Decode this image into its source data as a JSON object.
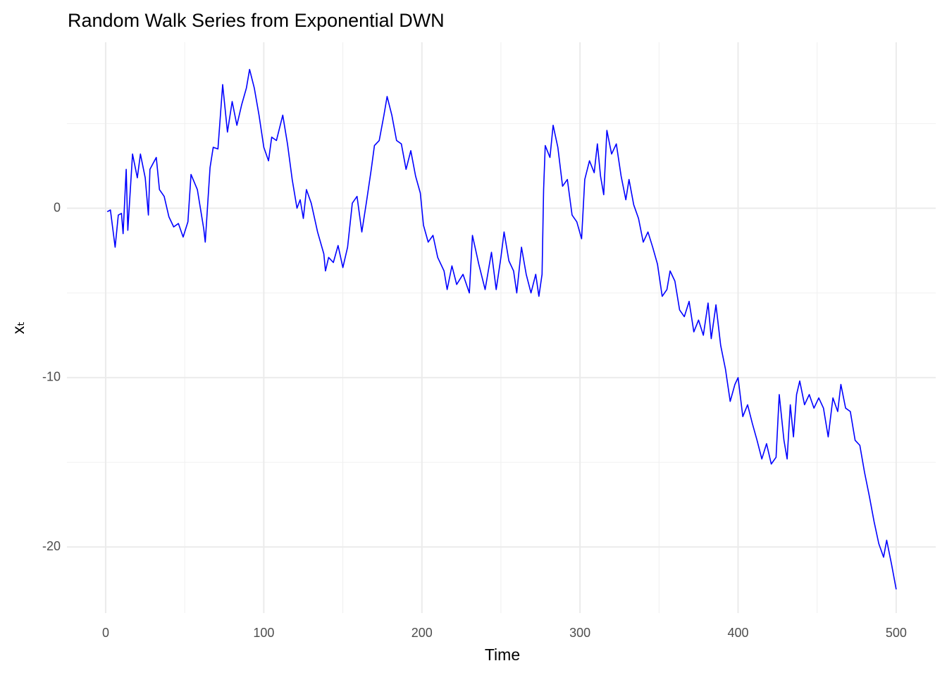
{
  "chart_data": {
    "type": "line",
    "title": "Random Walk Series from Exponential DWN",
    "xlabel": "Time",
    "ylabel": "xₜ",
    "x": [
      1,
      3,
      6,
      8,
      10,
      11,
      13,
      14,
      17,
      20,
      22,
      25,
      27,
      28,
      32,
      34,
      37,
      40,
      43,
      46,
      49,
      52,
      54,
      58,
      62,
      63,
      66,
      68,
      71,
      74,
      77,
      80,
      83,
      86,
      89,
      91,
      94,
      97,
      100,
      103,
      105,
      108,
      112,
      115,
      118,
      121,
      123,
      125,
      127,
      130,
      134,
      138,
      139,
      141,
      144,
      147,
      150,
      153,
      156,
      159,
      162,
      165,
      168,
      170,
      173,
      176,
      178,
      181,
      184,
      187,
      190,
      193,
      196,
      199,
      201,
      204,
      207,
      210,
      214,
      216,
      219,
      222,
      226,
      230,
      232,
      236,
      240,
      244,
      247,
      250,
      252,
      255,
      258,
      260,
      263,
      266,
      269,
      272,
      274,
      276,
      277,
      278,
      281,
      283,
      286,
      289,
      292,
      295,
      298,
      301,
      303,
      306,
      309,
      311,
      313,
      315,
      317,
      320,
      323,
      326,
      329,
      331,
      334,
      337,
      340,
      343,
      346,
      349,
      352,
      355,
      357,
      360,
      363,
      366,
      369,
      372,
      375,
      378,
      381,
      383,
      386,
      389,
      392,
      395,
      398,
      400,
      403,
      406,
      409,
      412,
      415,
      418,
      421,
      424,
      426,
      429,
      431,
      433,
      435,
      437,
      439,
      442,
      445,
      448,
      451,
      454,
      457,
      460,
      463,
      465,
      468,
      471,
      474,
      477,
      480,
      483,
      486,
      489,
      492,
      494,
      497,
      500
    ],
    "values": [
      -0.2,
      -0.1,
      -2.3,
      -0.4,
      -0.3,
      -1.5,
      2.3,
      -1.3,
      3.2,
      1.8,
      3.2,
      1.8,
      -0.4,
      2.3,
      3.0,
      1.1,
      0.7,
      -0.5,
      -1.1,
      -0.9,
      -1.7,
      -0.8,
      2.0,
      1.1,
      -1.2,
      -2.0,
      2.4,
      3.6,
      3.5,
      7.3,
      4.5,
      6.3,
      4.9,
      6.1,
      7.1,
      8.2,
      7.1,
      5.5,
      3.6,
      2.8,
      4.2,
      4.0,
      5.5,
      3.8,
      1.7,
      0,
      0.5,
      -0.6,
      1.1,
      0.3,
      -1.4,
      -2.7,
      -3.7,
      -2.9,
      -3.2,
      -2.2,
      -3.5,
      -2.3,
      0.3,
      0.7,
      -1.4,
      0.4,
      2.3,
      3.7,
      4.0,
      5.5,
      6.6,
      5.5,
      4.0,
      3.8,
      2.3,
      3.4,
      1.9,
      0.9,
      -1.0,
      -2.0,
      -1.6,
      -2.9,
      -3.7,
      -4.8,
      -3.4,
      -4.5,
      -3.9,
      -5.0,
      -1.6,
      -3.3,
      -4.8,
      -2.6,
      -4.8,
      -2.9,
      -1.4,
      -3.1,
      -3.7,
      -5.0,
      -2.3,
      -3.9,
      -5.0,
      -3.9,
      -5.2,
      -3.9,
      1.1,
      3.7,
      3.0,
      4.9,
      3.6,
      1.3,
      1.7,
      -0.4,
      -0.8,
      -1.8,
      1.7,
      2.8,
      2.1,
      3.8,
      1.9,
      0.8,
      4.6,
      3.2,
      3.8,
      1.9,
      0.5,
      1.7,
      0.2,
      -0.6,
      -2.0,
      -1.4,
      -2.3,
      -3.3,
      -5.2,
      -4.8,
      -3.7,
      -4.3,
      -6.0,
      -6.4,
      -5.5,
      -7.3,
      -6.6,
      -7.5,
      -5.6,
      -7.7,
      -5.7,
      -8.1,
      -9.5,
      -11.4,
      -10.4,
      -10.0,
      -12.3,
      -11.6,
      -12.7,
      -13.7,
      -14.8,
      -13.9,
      -15.1,
      -14.7,
      -11.0,
      -13.7,
      -14.8,
      -11.6,
      -13.5,
      -11.0,
      -10.2,
      -11.6,
      -11.0,
      -11.8,
      -11.2,
      -11.8,
      -13.5,
      -11.2,
      -12.0,
      -10.4,
      -11.8,
      -12.0,
      -13.7,
      -14.0,
      -15.6,
      -17.0,
      -18.5,
      -19.8,
      -20.6,
      -19.6,
      -21.0,
      -22.5
    ],
    "color": "#0000ff",
    "xlim": [
      -24.5,
      525
    ],
    "ylim": [
      -23.9,
      9.8
    ],
    "xticks": [
      0,
      100,
      200,
      300,
      400,
      500
    ],
    "yticks": [
      -20,
      -10,
      0
    ],
    "minor_xticks": [
      50,
      150,
      250,
      350,
      450
    ],
    "minor_yticks": [
      -15,
      -5,
      5
    ],
    "grid": true
  }
}
